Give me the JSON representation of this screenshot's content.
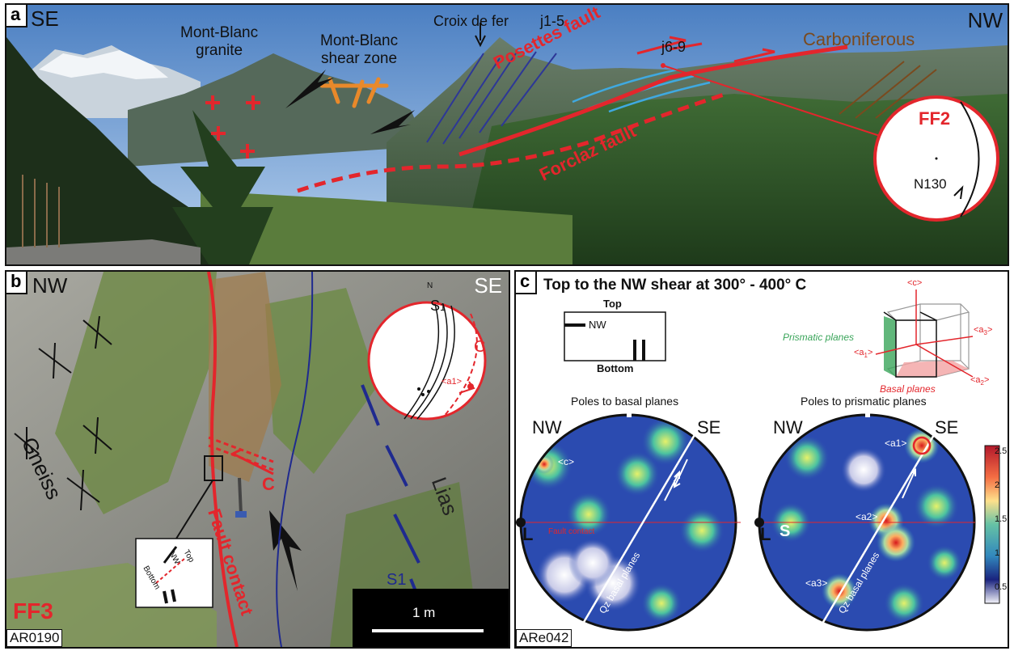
{
  "panel_a": {
    "letter": "a",
    "dir_left": "SE",
    "dir_right": "NW",
    "mb_granite": [
      "Mont-Blanc",
      "granite"
    ],
    "mb_shear": [
      "Mont-Blanc",
      "shear zone"
    ],
    "croix": "Croix de fer",
    "j15": "j1-5",
    "j69": "j6-9",
    "carboniferous": "Carboniferous",
    "posettes": "Posettes fault",
    "forclaz": "Forclaz fault",
    "ff_label": "FF2",
    "azimuth": "N130"
  },
  "panel_b": {
    "letter": "b",
    "dir_left": "NW",
    "dir_right": "SE",
    "north": "N",
    "gneiss": "Gneiss",
    "lias": "Lias",
    "fault_contact": "Fault contact",
    "c_label": "C",
    "s1_label": "S1",
    "stereo_s": "S",
    "stereo_sub": "1",
    "stereo_c": "C",
    "stereo_a1": "<a1>",
    "ff_label": "FF3",
    "sample": "AR0190",
    "scale": "1 m",
    "box_top": "Top",
    "box_bottom": "Bottom",
    "box_nw": "NW"
  },
  "panel_c": {
    "letter": "c",
    "title": "Top to the NW shear at 300° - 400° C",
    "box_top": "Top",
    "box_bottom": "Bottom",
    "box_nw": "NW",
    "crystal": {
      "c": "<c>",
      "a1": "<a",
      "a1_sub": "1",
      "a2": "<a",
      "a2_sub": "2",
      "a3": "<a",
      "a3_sub": "3",
      "close": ">",
      "prismatic": "Prismatic planes",
      "basal": "Basal planes"
    },
    "stereo_left": {
      "title": "Poles to basal planes",
      "nw": "NW",
      "se": "SE",
      "l": "L",
      "c": "<c>",
      "fault": "Fault contact",
      "qz": "Qz basal planes"
    },
    "stereo_right": {
      "title": "Poles to prismatic planes",
      "nw": "NW",
      "se": "SE",
      "l": "L",
      "s": "S",
      "a1": "<a1>",
      "a2": "<a2>",
      "a3": "<a3>",
      "qz": "Qz basal planes"
    },
    "colorbar_ticks": [
      "2.5",
      "2",
      "1.5",
      "1",
      "0.5"
    ],
    "sample": "ARe042"
  },
  "colors": {
    "fault_red": "#e3262c",
    "lias_blue": "#1f2a8f",
    "orange": "#e9892a",
    "brown": "#7a4a1e",
    "light_blue": "#3fa9e0",
    "prism_green": "#3aa55a"
  }
}
